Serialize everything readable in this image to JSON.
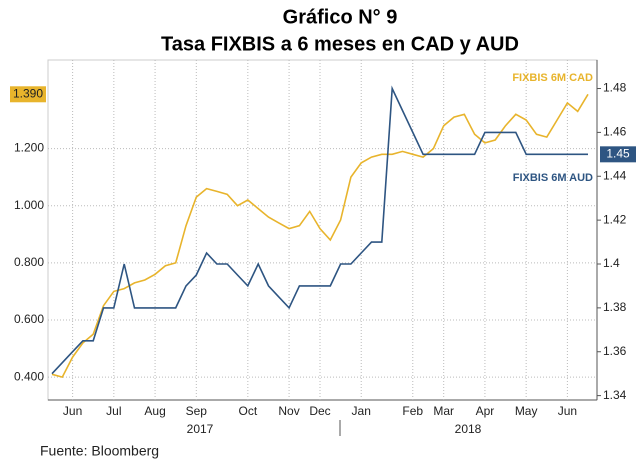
{
  "chart_data": {
    "type": "line",
    "title": "Gráfico N° 9",
    "subtitle": "Tasa FIXBIS a 6 meses en CAD y  AUD",
    "source": "Fuente: Bloomberg",
    "year_labels": [
      "2017",
      "2018"
    ],
    "categories": [
      null,
      null,
      "Jun",
      null,
      null,
      null,
      "Jul",
      null,
      null,
      null,
      "Aug",
      null,
      null,
      null,
      "Sep",
      null,
      null,
      null,
      null,
      "Oct",
      null,
      null,
      null,
      "Nov",
      null,
      null,
      "Dec",
      null,
      null,
      null,
      "Jan",
      null,
      null,
      null,
      null,
      "Feb",
      null,
      null,
      "Mar",
      null,
      null,
      null,
      "Apr",
      null,
      null,
      null,
      "May",
      null,
      null,
      null,
      "Jun",
      null,
      null
    ],
    "series": [
      {
        "name": "FIXBIS 6M CAD",
        "color": "#e8b42c",
        "last_label": "1.390",
        "values": [
          0.41,
          0.4,
          0.47,
          0.52,
          0.55,
          0.65,
          0.7,
          0.71,
          0.73,
          0.74,
          0.76,
          0.79,
          0.8,
          0.93,
          1.03,
          1.06,
          1.05,
          1.04,
          1.0,
          1.02,
          0.99,
          0.96,
          0.94,
          0.92,
          0.93,
          0.98,
          0.92,
          0.88,
          0.95,
          1.1,
          1.15,
          1.17,
          1.18,
          1.18,
          1.19,
          1.18,
          1.17,
          1.2,
          1.28,
          1.31,
          1.32,
          1.25,
          1.22,
          1.23,
          1.28,
          1.32,
          1.3,
          1.25,
          1.24,
          1.3,
          1.36,
          1.33,
          1.39
        ]
      },
      {
        "name": "FIXBIS 6M AUD",
        "color": "#2e5582",
        "axis": "y2",
        "last_label": "1.45",
        "values": [
          1.35,
          1.355,
          1.36,
          1.365,
          1.365,
          1.38,
          1.38,
          1.4,
          1.38,
          1.38,
          1.38,
          1.38,
          1.38,
          1.39,
          1.395,
          1.405,
          1.4,
          1.4,
          1.395,
          1.39,
          1.4,
          1.39,
          1.385,
          1.38,
          1.39,
          1.39,
          1.39,
          1.39,
          1.4,
          1.4,
          1.405,
          1.41,
          1.41,
          1.48,
          1.47,
          1.46,
          1.45,
          1.45,
          1.45,
          1.45,
          1.45,
          1.45,
          1.46,
          1.46,
          1.46,
          1.46,
          1.45,
          1.45,
          1.45,
          1.45,
          1.45,
          1.45,
          1.45
        ]
      }
    ],
    "ylim": [
      0.32,
      1.51
    ],
    "yticks": [
      {
        "value": 0.4,
        "label": "0.400"
      },
      {
        "value": 0.6,
        "label": "0.600"
      },
      {
        "value": 0.8,
        "label": "0.800"
      },
      {
        "value": 1.0,
        "label": "1.000"
      },
      {
        "value": 1.2,
        "label": "1.200"
      }
    ],
    "y2lim": [
      1.338,
      1.493
    ],
    "y2ticks": [
      1.34,
      1.36,
      1.38,
      1.4,
      1.42,
      1.44,
      1.46,
      1.48
    ],
    "grid": true
  }
}
